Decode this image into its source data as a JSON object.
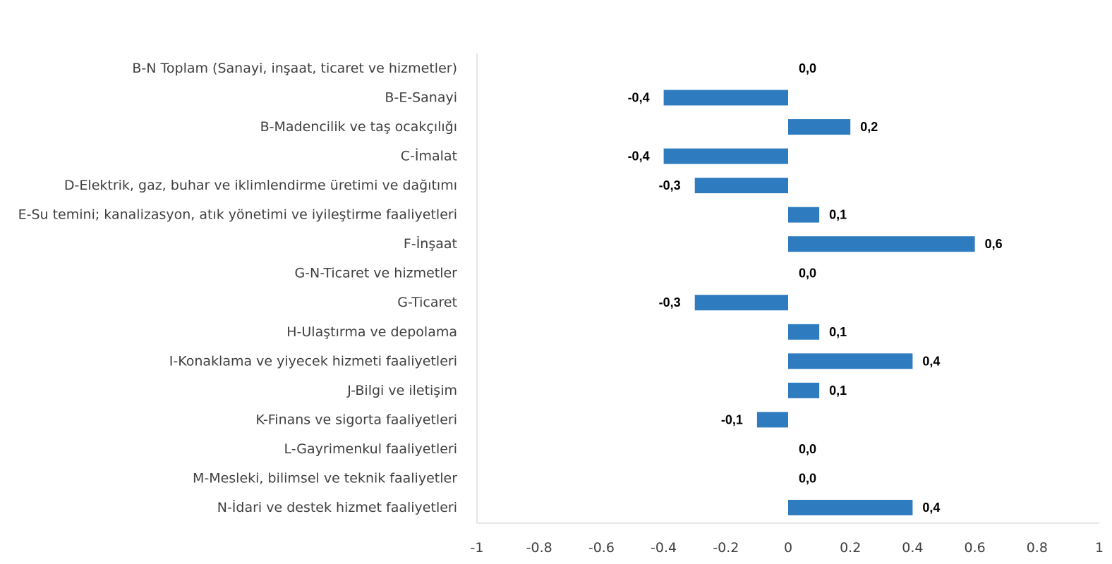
{
  "chart_data": {
    "type": "bar",
    "orientation": "horizontal",
    "title": "",
    "xlabel": "",
    "ylabel": "",
    "xlim": [
      -1,
      1
    ],
    "x_ticks": [
      -1,
      -0.8,
      -0.6,
      -0.4,
      -0.2,
      0,
      0.2,
      0.4,
      0.6,
      0.8,
      1
    ],
    "x_tick_labels": [
      "-1",
      "-0.8",
      "-0.6",
      "-0.4",
      "-0.2",
      "0",
      "0.2",
      "0.4",
      "0.6",
      "0.8",
      "1"
    ],
    "grid": false,
    "bar_color": "#2E7BBF",
    "axis_color": "#D9D9D9",
    "categories": [
      "B-N Toplam (Sanayi, inşaat, ticaret ve hizmetler)",
      "B-E-Sanayi",
      "B-Madencilik ve taş ocakçılığı",
      "C-İmalat",
      "D-Elektrik, gaz, buhar ve iklimlendirme üretimi ve dağıtımı",
      "E-Su temini; kanalizasyon, atık yönetimi ve iyileştirme faaliyetleri",
      "F-İnşaat",
      "G-N-Ticaret ve hizmetler",
      "G-Ticaret",
      "H-Ulaştırma ve depolama",
      "I-Konaklama ve yiyecek hizmeti faaliyetleri",
      "J-Bilgi ve iletişim",
      "K-Finans ve sigorta faaliyetleri",
      "L-Gayrimenkul faaliyetleri",
      "M-Mesleki, bilimsel ve teknik faaliyetler",
      "N-İdari ve destek hizmet faaliyetleri"
    ],
    "values": [
      0.0,
      -0.4,
      0.2,
      -0.4,
      -0.3,
      0.1,
      0.6,
      0.0,
      -0.3,
      0.1,
      0.4,
      0.1,
      -0.1,
      0.0,
      0.0,
      0.4
    ],
    "value_labels": [
      "0,0",
      "-0,4",
      "0,2",
      "-0,4",
      "-0,3",
      "0,1",
      "0,6",
      "0,0",
      "-0,3",
      "0,1",
      "0,4",
      "0,1",
      "-0,1",
      "0,0",
      "0,0",
      "0,4"
    ]
  }
}
